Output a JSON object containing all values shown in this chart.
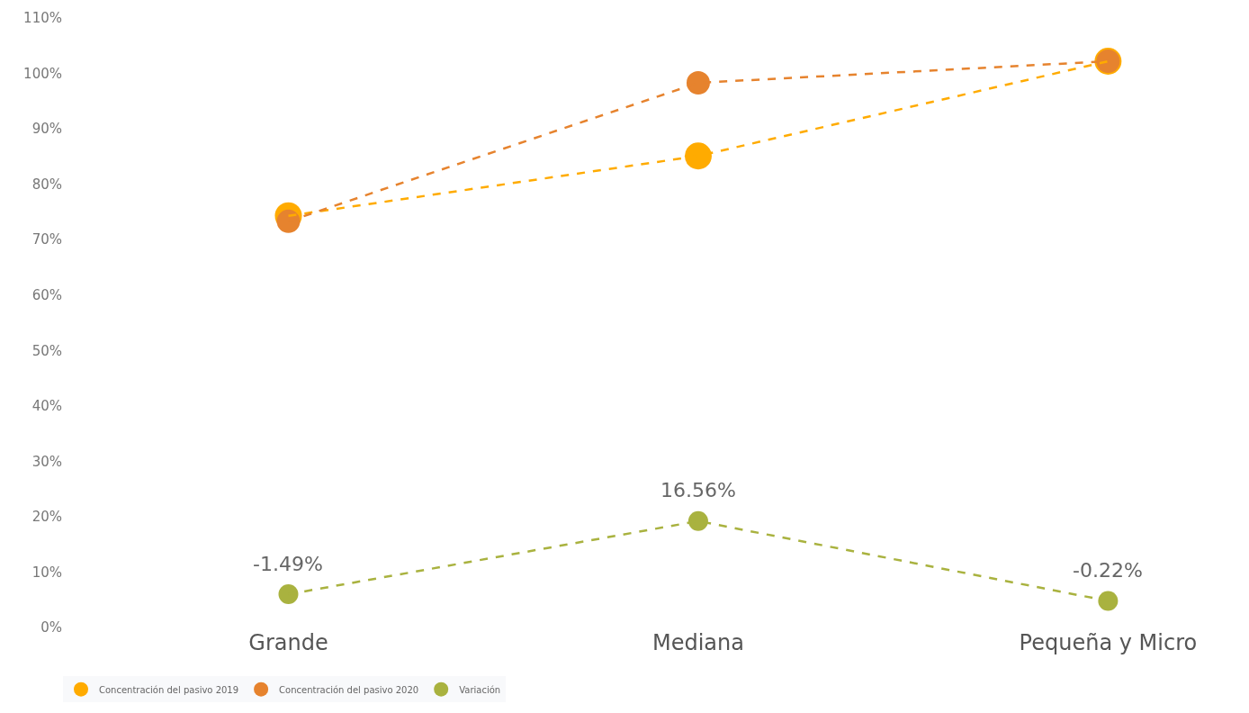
{
  "chart_data": {
    "type": "line",
    "categories": [
      "Grande",
      "Mediana",
      "Pequeña y Micro"
    ],
    "series": [
      {
        "name": "Concentración del pasivo 2019",
        "color": "#ffab00",
        "values": [
          74.3,
          85.1,
          102.2
        ]
      },
      {
        "name": "Concentración del pasivo 2020",
        "color": "#e6832e",
        "values": [
          73.3,
          98.3,
          102.2
        ]
      },
      {
        "name": "Variación",
        "color": "#a9b23f",
        "values": [
          6.0,
          19.2,
          4.8
        ]
      }
    ],
    "annotations": [
      {
        "text": "-1.49%",
        "x": "Grande",
        "y": 6.0
      },
      {
        "text": "16.56%",
        "x": "Mediana",
        "y": 19.2
      },
      {
        "text": "-0.22%",
        "x": "Pequeña y Micro",
        "y": 4.8
      }
    ],
    "ylim": [
      0,
      110
    ],
    "yticks": [
      {
        "value": 0,
        "label": "0%"
      },
      {
        "value": 10,
        "label": "10%"
      },
      {
        "value": 20,
        "label": "20%"
      },
      {
        "value": 30,
        "label": "30%"
      },
      {
        "value": 40,
        "label": "40%"
      },
      {
        "value": 50,
        "label": "50%"
      },
      {
        "value": 60,
        "label": "60%"
      },
      {
        "value": 70,
        "label": "70%"
      },
      {
        "value": 80,
        "label": "80%"
      },
      {
        "value": 90,
        "label": "90%"
      },
      {
        "value": 100,
        "label": "100%"
      },
      {
        "value": 110,
        "label": "110%"
      }
    ],
    "legend": "bottom left",
    "marker": "circle",
    "line_style": "dashed"
  }
}
